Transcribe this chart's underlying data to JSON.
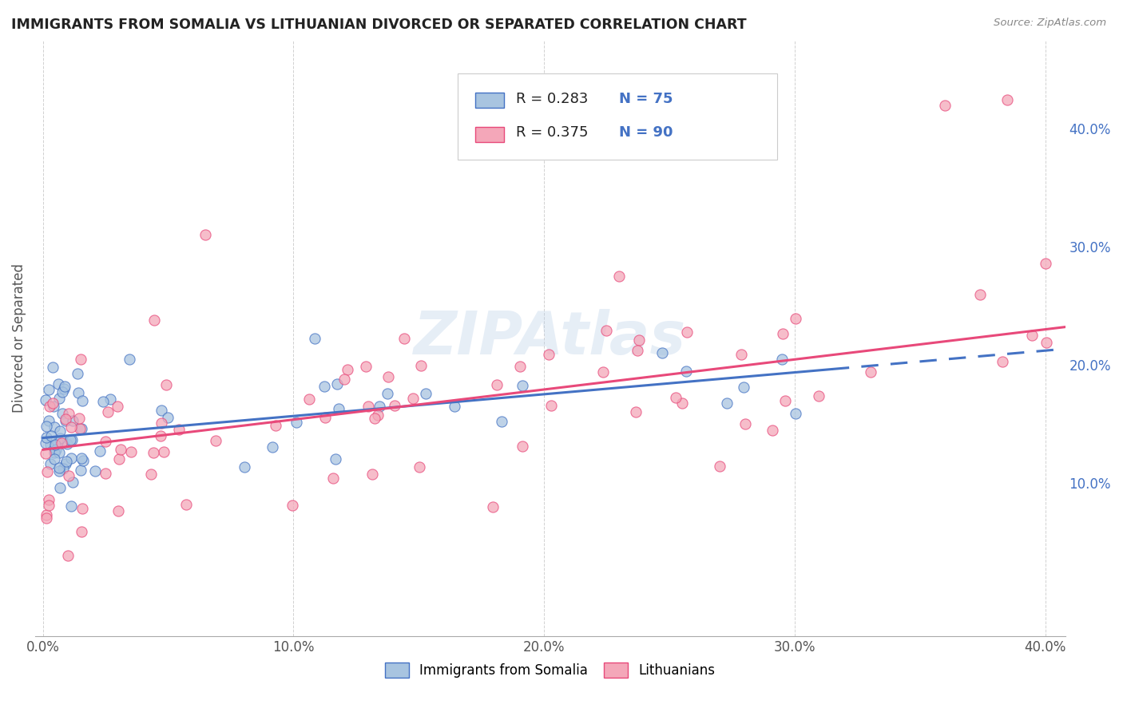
{
  "title": "IMMIGRANTS FROM SOMALIA VS LITHUANIAN DIVORCED OR SEPARATED CORRELATION CHART",
  "source": "Source: ZipAtlas.com",
  "ylabel": "Divorced or Separated",
  "xlim": [
    -0.003,
    0.408
  ],
  "ylim": [
    -0.03,
    0.475
  ],
  "x_ticks": [
    0.0,
    0.1,
    0.2,
    0.3,
    0.4
  ],
  "x_tick_labels": [
    "0.0%",
    "10.0%",
    "20.0%",
    "30.0%",
    "40.0%"
  ],
  "y_ticks_right": [
    0.1,
    0.2,
    0.3,
    0.4
  ],
  "y_tick_labels_right": [
    "10.0%",
    "20.0%",
    "30.0%",
    "40.0%"
  ],
  "legend_labels": [
    "Immigrants from Somalia",
    "Lithuanians"
  ],
  "R_somalia": 0.283,
  "N_somalia": 75,
  "R_lithuania": 0.375,
  "N_lithuania": 90,
  "color_somalia": "#a8c4e0",
  "color_lithuania": "#f4a7b9",
  "color_somalia_line": "#4472c4",
  "color_lithuania_line": "#e8497a",
  "watermark": "ZIPAtlas",
  "background_color": "#ffffff",
  "grid_color": "#cccccc",
  "legend_text_color": "#4472c4",
  "legend_R_color": "#222222",
  "somalia_trend_x0": 0.0,
  "somalia_trend_x_solid_end": 0.315,
  "somalia_trend_x_dash_end": 0.408,
  "somalia_trend_y0": 0.138,
  "somalia_trend_slope": 0.185,
  "lithuania_trend_x0": 0.0,
  "lithuania_trend_x_end": 0.408,
  "lithuania_trend_y0": 0.128,
  "lithuania_trend_slope": 0.255,
  "scatter_marker_size": 90
}
